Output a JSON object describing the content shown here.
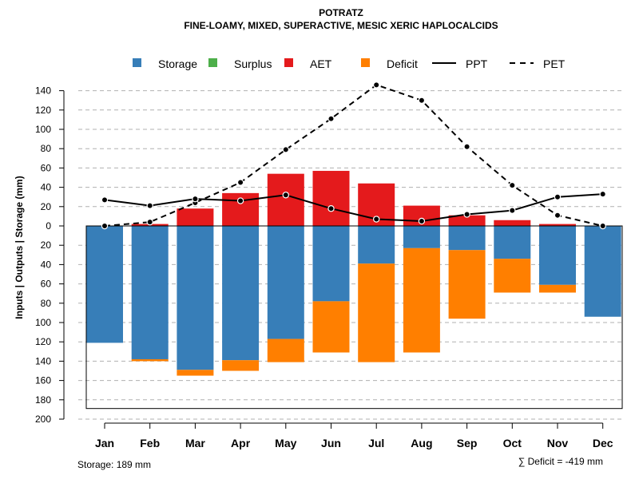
{
  "chart_data": {
    "type": "bar",
    "title": "POTRATZ",
    "subtitle": "FINE-LOAMY, MIXED, SUPERACTIVE, MESIC XERIC HAPLOCALCIDS",
    "ylabel": "Inputs | Outputs | Storage    (mm)",
    "xlabel": "",
    "categories": [
      "Jan",
      "Feb",
      "Mar",
      "Apr",
      "May",
      "Jun",
      "Jul",
      "Aug",
      "Sep",
      "Oct",
      "Nov",
      "Dec"
    ],
    "ylim": [
      -200,
      150
    ],
    "yticks": [
      140,
      120,
      100,
      80,
      60,
      40,
      20,
      0,
      -20,
      -40,
      -60,
      -80,
      -100,
      -120,
      -140,
      -160,
      -180,
      -200
    ],
    "ytick_labels": [
      "140",
      "120",
      "100",
      "80",
      "60",
      "40",
      "20",
      "0",
      "20",
      "40",
      "60",
      "80",
      "100",
      "120",
      "140",
      "160",
      "180",
      "200"
    ],
    "grid": true,
    "series": [
      {
        "name": "Storage",
        "kind": "bar-below",
        "color": "#377EB8",
        "values": [
          121,
          138,
          149,
          139,
          117,
          78,
          39,
          23,
          25,
          34,
          61,
          94
        ]
      },
      {
        "name": "Surplus",
        "kind": "bar-above",
        "color": "#4DAF4A",
        "values": [
          0,
          0,
          0,
          0,
          0,
          0,
          0,
          0,
          0,
          0,
          0,
          0
        ]
      },
      {
        "name": "AET",
        "kind": "bar-above",
        "color": "#E41A1C",
        "values": [
          0,
          2,
          18,
          34,
          54,
          57,
          44,
          21,
          11,
          6,
          2,
          0
        ]
      },
      {
        "name": "Deficit",
        "kind": "bar-below-stacked",
        "color": "#FF7F00",
        "values": [
          0,
          2,
          6,
          11,
          24,
          53,
          102,
          108,
          71,
          35,
          8,
          0
        ]
      },
      {
        "name": "PPT",
        "kind": "line",
        "color": "#000000",
        "dash": "solid",
        "values": [
          27,
          21,
          28,
          26,
          32,
          18,
          7,
          5,
          12,
          16,
          30,
          33
        ]
      },
      {
        "name": "PET",
        "kind": "line",
        "color": "#000000",
        "dash": "dashed",
        "values": [
          0,
          4,
          24,
          45,
          79,
          111,
          146,
          130,
          82,
          42,
          11,
          0
        ]
      }
    ],
    "storage_max": 189,
    "legend_position": "top"
  },
  "footer": {
    "storage_text": "Storage: 189 mm",
    "deficit_sum_text": "∑ Deficit = -419 mm"
  }
}
